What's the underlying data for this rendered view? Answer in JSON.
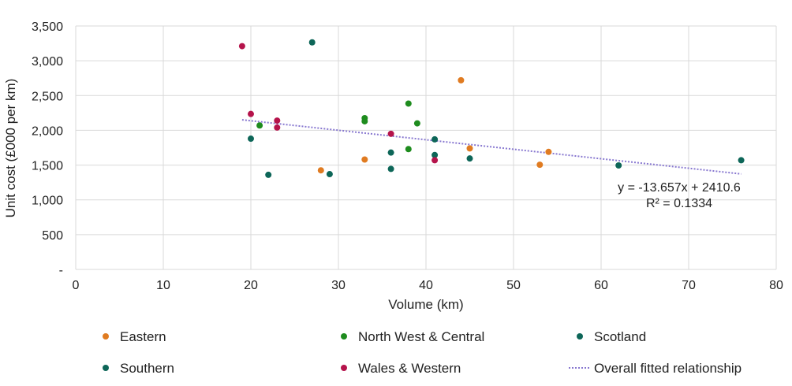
{
  "chart_data": {
    "type": "scatter",
    "xlabel": "Volume (km)",
    "ylabel": "Unit cost (£000 per km)",
    "xlim": [
      0,
      80
    ],
    "ylim": [
      0,
      3500
    ],
    "x_ticks": [
      0,
      10,
      20,
      30,
      40,
      50,
      60,
      70,
      80
    ],
    "y_ticks": [
      0,
      500,
      1000,
      1500,
      2000,
      2500,
      3000,
      3500
    ],
    "x_tick_labels": [
      "0",
      "10",
      "20",
      "30",
      "40",
      "50",
      "60",
      "70",
      "80"
    ],
    "y_tick_labels": [
      "-",
      "500",
      "1,000",
      "1,500",
      "2,000",
      "2,500",
      "3,000",
      "3,500"
    ],
    "grid": true,
    "legend_position": "bottom",
    "series": [
      {
        "name": "Eastern",
        "color": "#e07b21",
        "points": [
          [
            28,
            1425
          ],
          [
            33,
            1580
          ],
          [
            44,
            2720
          ],
          [
            45,
            1740
          ],
          [
            53,
            1505
          ],
          [
            54,
            1690
          ]
        ]
      },
      {
        "name": "North West & Central",
        "color": "#1e8c1e",
        "points": [
          [
            21,
            2070
          ],
          [
            33,
            2175
          ],
          [
            33,
            2130
          ],
          [
            38,
            2385
          ],
          [
            39,
            2100
          ],
          [
            38,
            1730
          ]
        ]
      },
      {
        "name": "Scotland",
        "color": "#0d6658",
        "points": [
          [
            41,
            1870
          ],
          [
            41,
            1645
          ],
          [
            45,
            1595
          ],
          [
            62,
            1495
          ],
          [
            76,
            1570
          ]
        ]
      },
      {
        "name": "Southern",
        "color": "#0d6658",
        "points": [
          [
            20,
            1880
          ],
          [
            22,
            1360
          ],
          [
            27,
            3265
          ],
          [
            29,
            1370
          ],
          [
            36,
            1680
          ],
          [
            36,
            1445
          ]
        ]
      },
      {
        "name": "Wales & Western",
        "color": "#b5134b",
        "points": [
          [
            19,
            3210
          ],
          [
            20,
            2235
          ],
          [
            23,
            2140
          ],
          [
            23,
            2040
          ],
          [
            36,
            1950
          ],
          [
            41,
            1570
          ]
        ]
      }
    ],
    "trendline": {
      "name": "Overall fitted relationship",
      "color": "#8878d0",
      "slope": -13.657,
      "intercept": 2410.6,
      "x_range": [
        19,
        76
      ],
      "equation_label": "y = -13.657x + 2410.6",
      "r2_label": "R² = 0.1334"
    }
  },
  "legend": {
    "items": [
      {
        "label": "Eastern",
        "type": "marker",
        "color": "#e07b21"
      },
      {
        "label": "North West & Central",
        "type": "marker",
        "color": "#1e8c1e"
      },
      {
        "label": "Scotland",
        "type": "marker",
        "color": "#0d6658"
      },
      {
        "label": "Southern",
        "type": "marker",
        "color": "#0d6658"
      },
      {
        "label": "Wales & Western",
        "type": "marker",
        "color": "#b5134b"
      },
      {
        "label": "Overall fitted relationship",
        "type": "dotted-line",
        "color": "#8878d0"
      }
    ]
  }
}
